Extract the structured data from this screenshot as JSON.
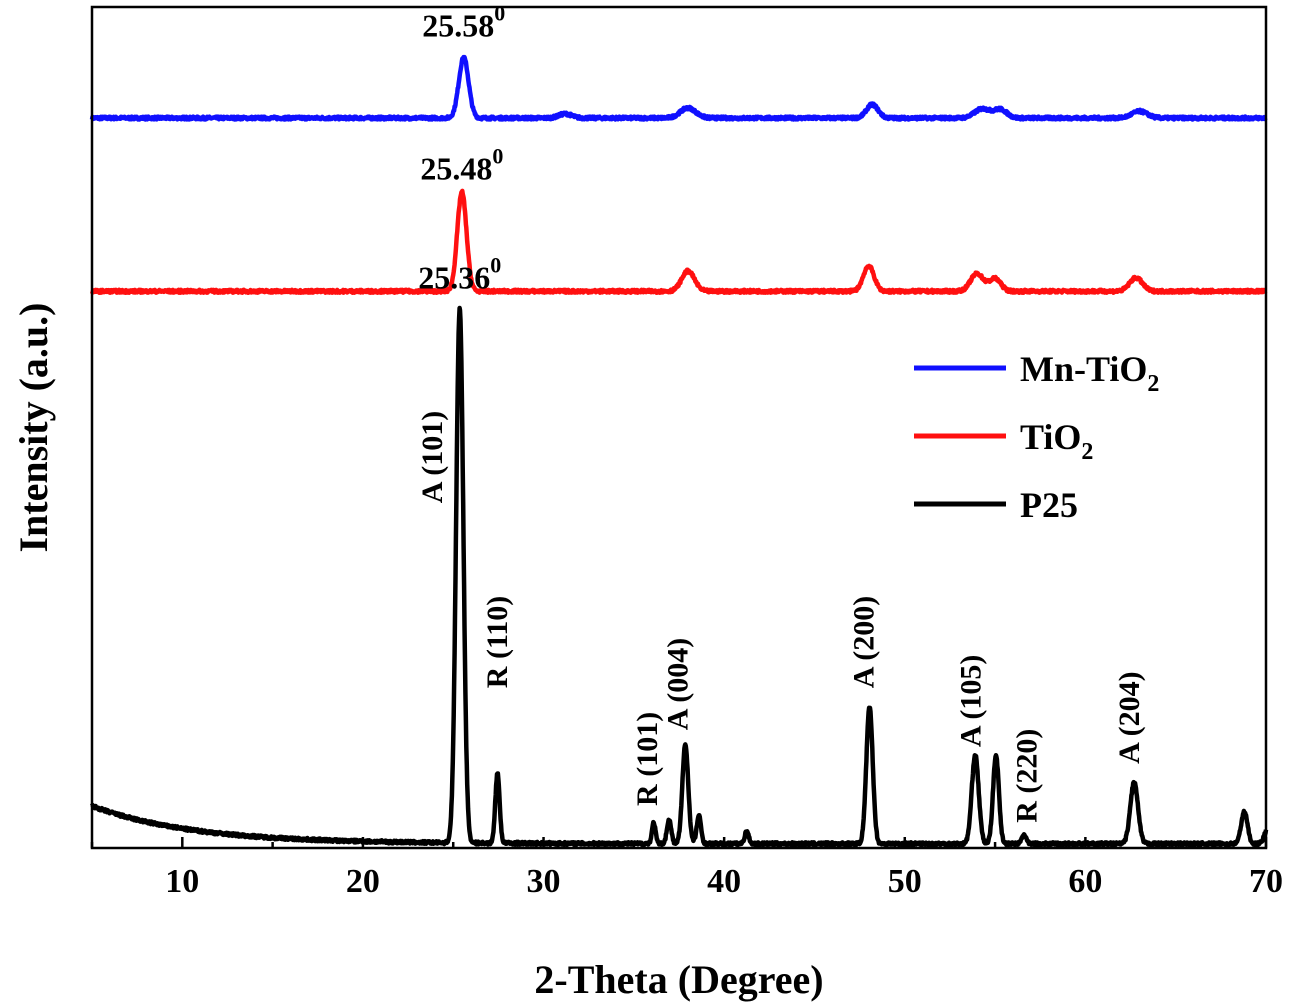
{
  "chart_data": {
    "type": "line",
    "xlabel": "2-Theta (Degree)",
    "ylabel": "Intensity (a.u.)",
    "xlim": [
      5,
      70
    ],
    "ylim": [
      0,
      1
    ],
    "x_ticks": [
      10,
      20,
      30,
      40,
      50,
      60,
      70
    ],
    "y_ticks_shown": false,
    "legend_position": "middle-right",
    "series": [
      {
        "name": "Mn-TiO",
        "name_subscript": "2",
        "color": "#1010ff",
        "baseline": 0.868,
        "peaks": [
          [
            25.58,
            0.072,
            0.38
          ],
          [
            31.2,
            0.005,
            0.5
          ],
          [
            38.0,
            0.012,
            0.6
          ],
          [
            48.2,
            0.016,
            0.45
          ],
          [
            54.3,
            0.011,
            0.6
          ],
          [
            55.3,
            0.01,
            0.5
          ],
          [
            63.0,
            0.008,
            0.6
          ]
        ]
      },
      {
        "name": "TiO",
        "name_subscript": "2",
        "color": "#ff1010",
        "baseline": 0.662,
        "peaks": [
          [
            25.48,
            0.118,
            0.36
          ],
          [
            38.0,
            0.024,
            0.5
          ],
          [
            48.0,
            0.03,
            0.42
          ],
          [
            54.0,
            0.021,
            0.5
          ],
          [
            55.0,
            0.015,
            0.45
          ],
          [
            62.8,
            0.016,
            0.5
          ]
        ]
      },
      {
        "name": "P25",
        "color": "#000000",
        "baseline": 0.005,
        "peaks": [
          [
            25.36,
            0.635,
            0.28
          ],
          [
            27.45,
            0.083,
            0.17
          ],
          [
            36.1,
            0.025,
            0.14
          ],
          [
            36.95,
            0.028,
            0.17
          ],
          [
            37.85,
            0.118,
            0.23
          ],
          [
            38.6,
            0.033,
            0.17
          ],
          [
            41.25,
            0.015,
            0.16
          ],
          [
            48.05,
            0.162,
            0.25
          ],
          [
            53.9,
            0.106,
            0.27
          ],
          [
            55.05,
            0.105,
            0.23
          ],
          [
            56.6,
            0.011,
            0.17
          ],
          [
            62.7,
            0.073,
            0.3
          ],
          [
            68.8,
            0.038,
            0.25
          ],
          [
            70.1,
            0.018,
            0.25
          ]
        ]
      }
    ],
    "peak_labels": [
      {
        "text": "25.58",
        "sup": "0",
        "x": 25.58,
        "y": 0.965
      },
      {
        "text": "25.48",
        "sup": "0",
        "x": 25.48,
        "y": 0.795
      },
      {
        "text": "25.36",
        "sup": "0",
        "x": 25.36,
        "y": 0.665
      }
    ],
    "annotations": [
      {
        "text": "A (101)",
        "x": 24.0,
        "y": 0.41
      },
      {
        "text": "R (110)",
        "x": 27.6,
        "y": 0.19
      },
      {
        "text": "R (101)",
        "x": 35.9,
        "y": 0.05
      },
      {
        "text": "A (004)",
        "x": 37.6,
        "y": 0.14
      },
      {
        "text": "A (200)",
        "x": 47.9,
        "y": 0.19
      },
      {
        "text": "A (105)",
        "x": 53.8,
        "y": 0.12
      },
      {
        "text": "R (220)",
        "x": 56.9,
        "y": 0.03
      },
      {
        "text": "A (204)",
        "x": 62.6,
        "y": 0.1
      }
    ]
  }
}
